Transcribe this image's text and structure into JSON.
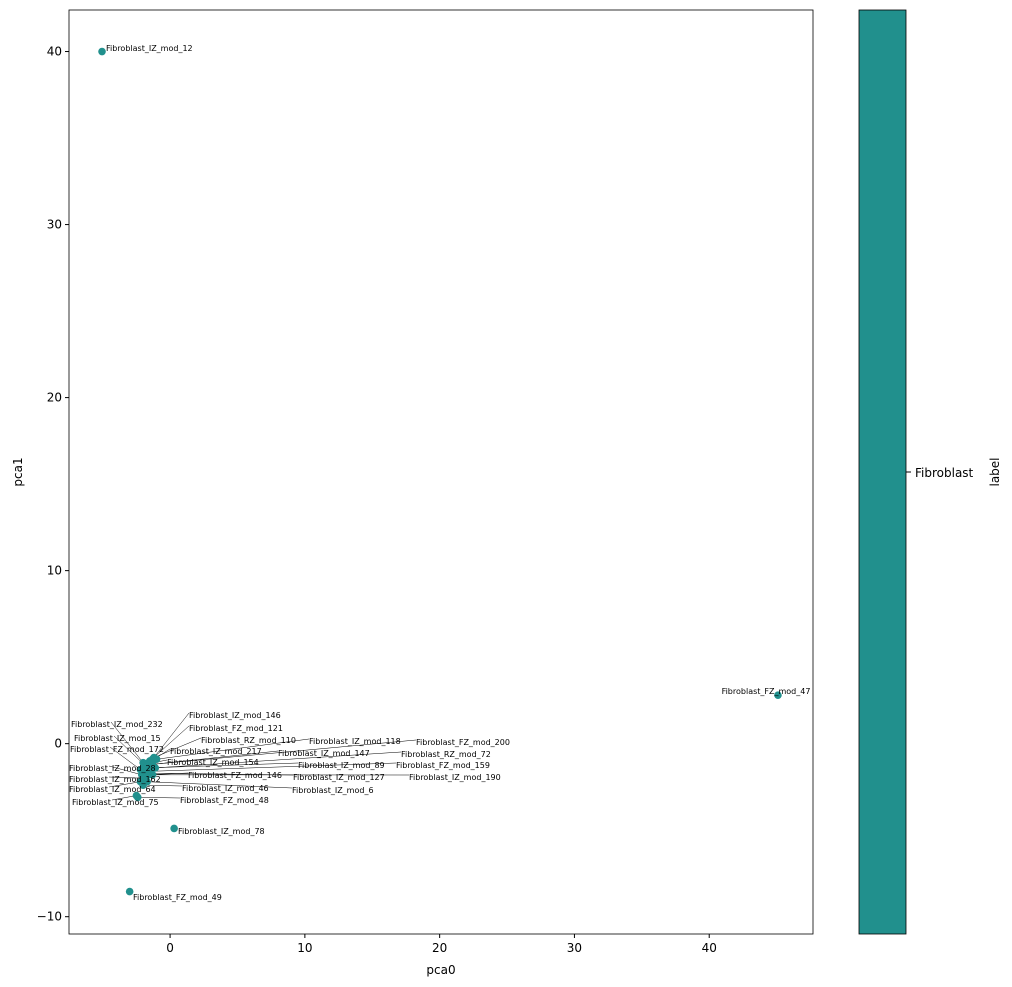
{
  "chart_data": {
    "type": "scatter",
    "xlabel": "pca0",
    "ylabel": "pca1",
    "color": "#21908d",
    "labels": [
      "Fibroblast_IZ_mod_12",
      "Fibroblast_FZ_mod_47",
      "Fibroblast_IZ_mod_78",
      "Fibroblast_FZ_mod_49",
      "Fibroblast_IZ_mod_146",
      "Fibroblast_FZ_mod_121",
      "Fibroblast_RZ_mod_110",
      "Fibroblast_IZ_mod_118",
      "Fibroblast_FZ_mod_200",
      "Fibroblast_IZ_mod_232",
      "Fibroblast_IZ_mod_15",
      "Fibroblast_FZ_mod_172",
      "Fibroblast_IZ_mod_217",
      "Fibroblast_IZ_mod_147",
      "Fibroblast_RZ_mod_72",
      "Fibroblast_IZ_mod_154",
      "Fibroblast_IZ_mod_89",
      "Fibroblast_FZ_mod_159",
      "Fibroblast_IZ_mod_28",
      "Fibroblast_IZ_mod_162",
      "Fibroblast_FZ_mod_146",
      "Fibroblast_IZ_mod_127",
      "Fibroblast_IZ_mod_190",
      "Fibroblast_IZ_mod_64",
      "Fibroblast_IZ_mod_46",
      "Fibroblast_IZ_mod_6",
      "Fibroblast_IZ_mod_75",
      "Fibroblast_FZ_mod_48"
    ],
    "x": [
      -5.05,
      45.1,
      0.3,
      -3.0,
      -1.3,
      -1.5,
      -1.2,
      -1.0,
      -1.4,
      -2.0,
      -1.8,
      -2.2,
      -1.6,
      -1.3,
      -1.1,
      -1.9,
      -1.7,
      -1.5,
      -2.1,
      -1.9,
      -1.6,
      -1.8,
      -1.3,
      -2.2,
      -2.0,
      -1.7,
      -2.5,
      -2.4
    ],
    "y": [
      40.0,
      2.8,
      -4.9,
      -8.55,
      -0.9,
      -1.0,
      -0.8,
      -0.9,
      -1.2,
      -1.1,
      -1.3,
      -1.5,
      -1.1,
      -1.2,
      -1.4,
      -1.2,
      -1.4,
      -1.6,
      -1.8,
      -2.0,
      -1.8,
      -1.7,
      -1.8,
      -2.2,
      -2.4,
      -2.2,
      -3.0,
      -3.1
    ],
    "xlim": [
      -7.5,
      47.7
    ],
    "ylim": [
      -11.0,
      42.4
    ],
    "xticks": [
      0,
      10,
      20,
      30,
      40
    ],
    "yticks": [
      {
        "value": -10,
        "label": "−10"
      },
      0,
      10,
      20,
      30,
      40
    ],
    "colorbar": {
      "label": "label",
      "ticks": [
        "Fibroblast"
      ]
    }
  }
}
